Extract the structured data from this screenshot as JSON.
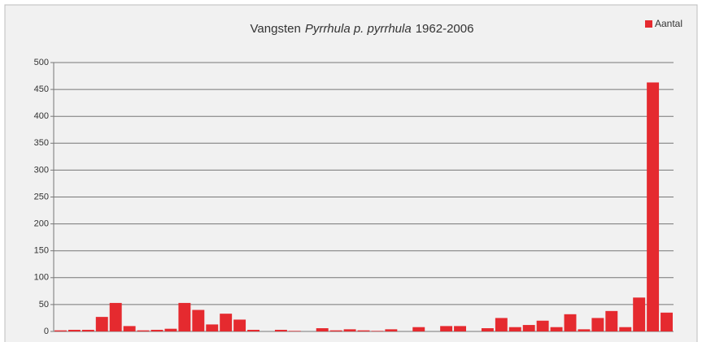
{
  "chart_data": {
    "type": "bar",
    "title": [
      "Vangsten",
      "Pyrrhula p. pyrrhula",
      "1962-2006"
    ],
    "series": [
      {
        "name": "Aantal",
        "color": "#e52a2f",
        "values": [
          2,
          3,
          3,
          27,
          53,
          10,
          2,
          3,
          5,
          53,
          40,
          13,
          33,
          22,
          3,
          0,
          3,
          1,
          0,
          6,
          2,
          4,
          2,
          1,
          4,
          0,
          8,
          0,
          10,
          10,
          0,
          6,
          25,
          8,
          12,
          20,
          8,
          32,
          4,
          25,
          38,
          8,
          63,
          463,
          35
        ]
      }
    ],
    "ylim": [
      0,
      500
    ],
    "yticks": [
      0,
      50,
      100,
      150,
      200,
      250,
      300,
      350,
      400,
      450,
      500
    ],
    "grid": true,
    "legend": "top-right"
  }
}
